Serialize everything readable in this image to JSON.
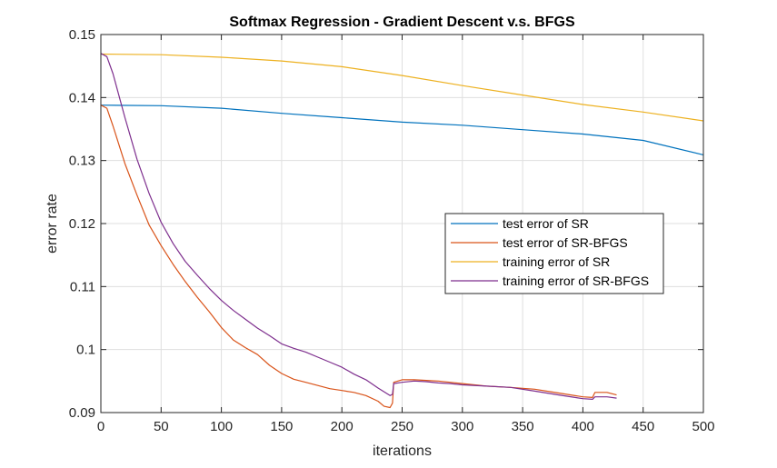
{
  "chart_data": {
    "type": "line",
    "title": "Softmax Regression - Gradient Descent v.s. BFGS",
    "xlabel": "iterations",
    "ylabel": "error rate",
    "xlim": [
      0,
      500
    ],
    "ylim": [
      0.09,
      0.15
    ],
    "xticks": [
      0,
      50,
      100,
      150,
      200,
      250,
      300,
      350,
      400,
      450,
      500
    ],
    "xtick_labels": [
      "0",
      "50",
      "100",
      "150",
      "200",
      "250",
      "300",
      "350",
      "400",
      "450",
      "500"
    ],
    "yticks": [
      0.09,
      0.1,
      0.11,
      0.12,
      0.13,
      0.14,
      0.15
    ],
    "ytick_labels": [
      "0.09",
      "0.1",
      "0.11",
      "0.12",
      "0.13",
      "0.14",
      "0.15"
    ],
    "grid": true,
    "legend_position": "center-right",
    "series": [
      {
        "name": "test error of SR",
        "color": "#0072BD",
        "x": [
          0,
          50,
          100,
          150,
          200,
          250,
          300,
          350,
          400,
          450,
          500
        ],
        "y": [
          0.1388,
          0.1387,
          0.1383,
          0.1375,
          0.1368,
          0.1361,
          0.1356,
          0.1349,
          0.1342,
          0.1332,
          0.1309
        ]
      },
      {
        "name": "test error of SR-BFGS",
        "color": "#D95319",
        "x": [
          0,
          5,
          10,
          20,
          30,
          40,
          50,
          60,
          70,
          80,
          90,
          100,
          110,
          120,
          130,
          140,
          150,
          160,
          170,
          180,
          190,
          200,
          210,
          220,
          230,
          235,
          240,
          242,
          243,
          250,
          260,
          270,
          280,
          290,
          300,
          320,
          340,
          360,
          380,
          400,
          408,
          410,
          420,
          428
        ],
        "y": [
          0.1388,
          0.1383,
          0.1355,
          0.1295,
          0.1245,
          0.1198,
          0.1165,
          0.1135,
          0.1108,
          0.1083,
          0.106,
          0.1035,
          0.1015,
          0.1003,
          0.0992,
          0.0975,
          0.0962,
          0.0953,
          0.0948,
          0.0943,
          0.0938,
          0.0935,
          0.0932,
          0.0927,
          0.0918,
          0.091,
          0.0908,
          0.0915,
          0.0948,
          0.0952,
          0.0952,
          0.0951,
          0.095,
          0.0948,
          0.0946,
          0.0942,
          0.094,
          0.0937,
          0.0931,
          0.0925,
          0.0924,
          0.0932,
          0.0932,
          0.0928
        ]
      },
      {
        "name": "training error of SR",
        "color": "#EDB120",
        "x": [
          0,
          50,
          100,
          150,
          200,
          250,
          300,
          350,
          400,
          450,
          500
        ],
        "y": [
          0.1469,
          0.1468,
          0.1464,
          0.1458,
          0.1449,
          0.1435,
          0.1419,
          0.1404,
          0.1389,
          0.1377,
          0.1363
        ]
      },
      {
        "name": "training error of SR-BFGS",
        "color": "#7E2F8E",
        "x": [
          0,
          5,
          10,
          20,
          30,
          40,
          50,
          60,
          70,
          80,
          90,
          100,
          110,
          120,
          130,
          140,
          150,
          160,
          170,
          180,
          190,
          200,
          210,
          220,
          230,
          240,
          242,
          243,
          250,
          260,
          270,
          280,
          290,
          300,
          320,
          340,
          360,
          380,
          400,
          408,
          410,
          420,
          428
        ],
        "y": [
          0.147,
          0.1465,
          0.1438,
          0.1368,
          0.1302,
          0.1248,
          0.1202,
          0.1168,
          0.114,
          0.1118,
          0.1097,
          0.1078,
          0.1062,
          0.1048,
          0.1034,
          0.1022,
          0.1009,
          0.1002,
          0.0996,
          0.0988,
          0.098,
          0.0972,
          0.0961,
          0.0952,
          0.0939,
          0.0927,
          0.0929,
          0.0946,
          0.0948,
          0.095,
          0.0949,
          0.0947,
          0.0946,
          0.0944,
          0.0942,
          0.094,
          0.0934,
          0.0928,
          0.0922,
          0.0921,
          0.0925,
          0.0925,
          0.0923
        ]
      }
    ]
  }
}
